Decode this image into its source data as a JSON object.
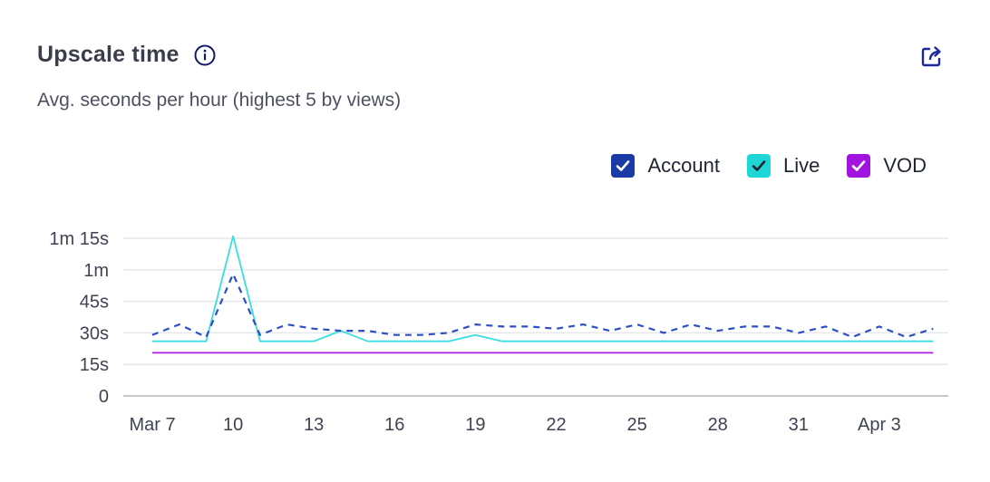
{
  "title": "Upscale time",
  "subtitle": "Avg. seconds per hour (highest 5 by views)",
  "icons": {
    "info": "info-icon",
    "export": "export-icon"
  },
  "legend": [
    {
      "label": "Account",
      "color": "#1a3aa8",
      "check_color": "#ffffff"
    },
    {
      "label": "Live",
      "color": "#1fd6d6",
      "check_color": "#1f2433"
    },
    {
      "label": "VOD",
      "color": "#a313e0",
      "check_color": "#ffffff"
    }
  ],
  "chart_data": {
    "type": "line",
    "title": "Upscale time",
    "subtitle": "Avg. seconds per hour (highest 5 by views)",
    "x_tick_labels": [
      "Mar 7",
      "10",
      "13",
      "16",
      "19",
      "22",
      "25",
      "28",
      "31",
      "Apr 3"
    ],
    "x": [
      "Mar 7",
      "Mar 8",
      "Mar 9",
      "Mar 10",
      "Mar 11",
      "Mar 12",
      "Mar 13",
      "Mar 14",
      "Mar 15",
      "Mar 16",
      "Mar 17",
      "Mar 18",
      "Mar 19",
      "Mar 20",
      "Mar 21",
      "Mar 22",
      "Mar 23",
      "Mar 24",
      "Mar 25",
      "Mar 26",
      "Mar 27",
      "Mar 28",
      "Mar 29",
      "Mar 30",
      "Mar 31",
      "Apr 1",
      "Apr 2",
      "Apr 3",
      "Apr 4",
      "Apr 5"
    ],
    "y_ticks": [
      0,
      15,
      30,
      45,
      60,
      75
    ],
    "y_tick_labels": [
      "0",
      "15s",
      "30s",
      "45s",
      "1m",
      "1m 15s"
    ],
    "ylim": [
      0,
      75
    ],
    "grid": true,
    "legend_position": "top-right",
    "series": [
      {
        "name": "Account",
        "color": "#2d4fc4",
        "style": "dashed",
        "values": [
          29,
          34,
          28,
          58,
          29,
          34,
          32,
          31,
          31,
          29,
          29,
          30,
          34,
          33,
          33,
          32,
          34,
          31,
          34,
          30,
          34,
          31,
          33,
          33,
          30,
          33,
          28,
          33,
          28,
          32
        ]
      },
      {
        "name": "Live",
        "color": "#3adede",
        "style": "solid",
        "values": [
          26,
          26,
          26,
          76,
          26,
          26,
          26,
          31,
          26,
          26,
          26,
          26,
          29,
          26,
          26,
          26,
          26,
          26,
          26,
          26,
          26,
          26,
          26,
          26,
          26,
          26,
          26,
          26,
          26,
          26
        ]
      },
      {
        "name": "VOD",
        "color": "#b01be6",
        "style": "solid",
        "values": [
          20.5,
          20.5,
          20.5,
          20.5,
          20.5,
          20.5,
          20.5,
          20.5,
          20.5,
          20.5,
          20.5,
          20.5,
          20.5,
          20.5,
          20.5,
          20.5,
          20.5,
          20.5,
          20.5,
          20.5,
          20.5,
          20.5,
          20.5,
          20.5,
          20.5,
          20.5,
          20.5,
          20.5,
          20.5,
          20.5
        ]
      }
    ]
  }
}
